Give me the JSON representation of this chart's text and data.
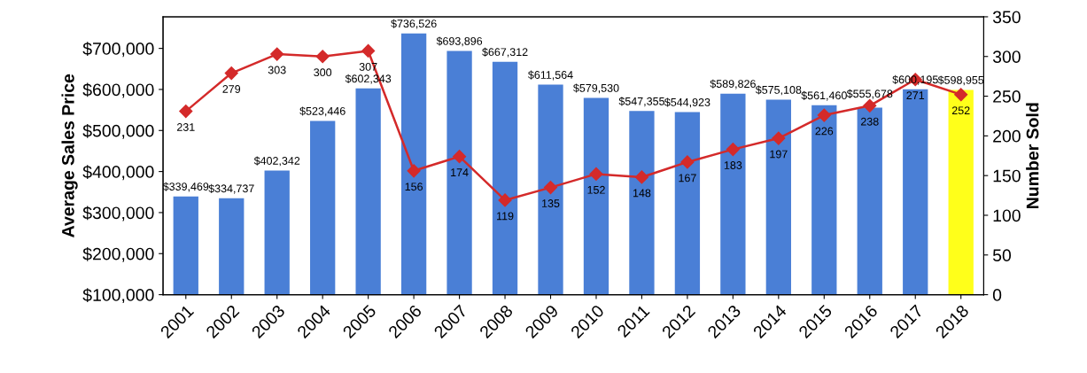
{
  "chart_data": {
    "type": "bar",
    "ylabel": "Average Sales Price",
    "y2label": "Number Sold",
    "categories": [
      "2001",
      "2002",
      "2003",
      "2004",
      "2005",
      "2006",
      "2007",
      "2008",
      "2009",
      "2010",
      "2011",
      "2012",
      "2013",
      "2014",
      "2015",
      "2016",
      "2017",
      "2018"
    ],
    "series": [
      {
        "colors": [
          "#4a7fd6",
          "#4a7fd6",
          "#4a7fd6",
          "#4a7fd6",
          "#4a7fd6",
          "#4a7fd6",
          "#4a7fd6",
          "#4a7fd6",
          "#4a7fd6",
          "#4a7fd6",
          "#4a7fd6",
          "#4a7fd6",
          "#4a7fd6",
          "#4a7fd6",
          "#4a7fd6",
          "#4a7fd6",
          "#4a7fd6",
          "#ffff1a"
        ],
        "values": [
          339469,
          334737,
          402342,
          523446,
          602343,
          736526,
          693896,
          667312,
          611564,
          579530,
          547355,
          544923,
          589826,
          575108,
          561460,
          555678,
          600195,
          598955
        ],
        "value_labels": [
          "$339,469",
          "$334,737",
          "$402,342",
          "$523,446",
          "$602,343",
          "$736,526",
          "$693,896",
          "$667,312",
          "$611,564",
          "$579,530",
          "$547,355",
          "$544,923",
          "$589,826",
          "$575,108",
          "$561,460",
          "$555,678",
          "$600,195",
          "$598,955"
        ]
      },
      {
        "type": "line",
        "axis": "y2",
        "color": "#d42a2a",
        "marker": "diamond",
        "line_style": "solid",
        "values": [
          231,
          279,
          303,
          300,
          307,
          156,
          174,
          119,
          135,
          152,
          148,
          167,
          183,
          197,
          226,
          238,
          271,
          252
        ],
        "data_labels": true
      }
    ],
    "ylim": [
      100000,
      777000
    ],
    "yticks": [
      {
        "value": 100000,
        "label": "$100,000"
      },
      {
        "value": 200000,
        "label": "$200,000"
      },
      {
        "value": 300000,
        "label": "$300,000"
      },
      {
        "value": 400000,
        "label": "$400,000"
      },
      {
        "value": 500000,
        "label": "$500,000"
      },
      {
        "value": 600000,
        "label": "$600,000"
      },
      {
        "value": 700000,
        "label": "$700,000"
      }
    ],
    "y2lim": [
      0,
      350
    ],
    "y2ticks": [
      0,
      50,
      100,
      150,
      200,
      250,
      300,
      350
    ],
    "grid": false,
    "legend": false
  }
}
